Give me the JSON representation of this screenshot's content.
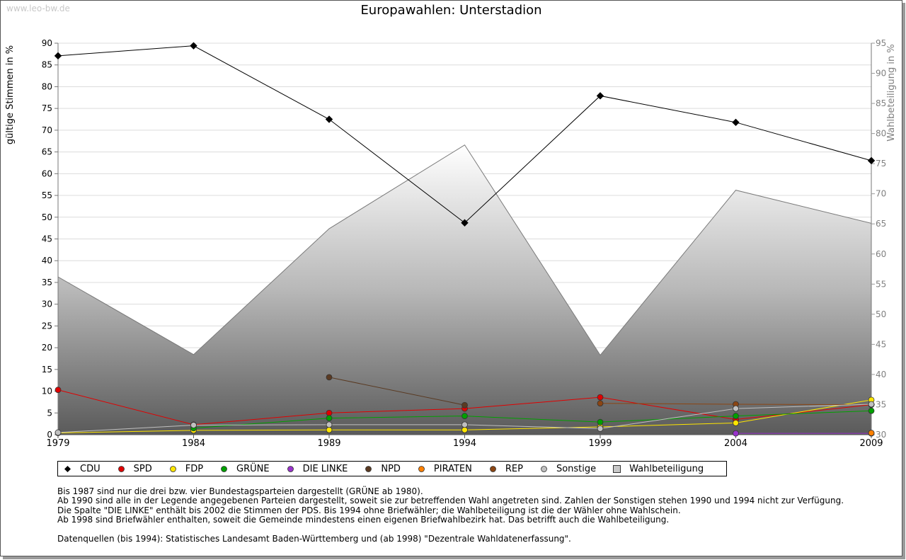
{
  "watermark": "www.leo-bw.de",
  "chart_data": {
    "type": "line",
    "title": "Europawahlen: Unterstadion",
    "ylabel": "gültige Stimmen in %",
    "y2label": "Wahlbeteiligung in %",
    "x": [
      "1979",
      "1984",
      "1989",
      "1994",
      "1999",
      "2004",
      "2009"
    ],
    "ylim": [
      0,
      90
    ],
    "yticks": [
      0,
      5,
      10,
      15,
      20,
      25,
      30,
      35,
      40,
      45,
      50,
      55,
      60,
      65,
      70,
      75,
      80,
      85,
      90
    ],
    "y2lim": [
      30,
      95
    ],
    "y2ticks": [
      30,
      35,
      40,
      45,
      50,
      55,
      60,
      65,
      70,
      75,
      80,
      85,
      90,
      95
    ],
    "grid": true,
    "legend_position": "bottom",
    "series": [
      {
        "name": "CDU",
        "color": "#000000",
        "values": [
          87.1,
          89.4,
          72.5,
          48.7,
          77.9,
          71.8,
          63.0
        ]
      },
      {
        "name": "SPD",
        "color": "#e00000",
        "values": [
          10.3,
          2.3,
          5.0,
          6.0,
          8.6,
          3.5,
          6.9
        ]
      },
      {
        "name": "FDP",
        "color": "#ffe600",
        "values": [
          0.4,
          1.0,
          1.1,
          1.1,
          1.8,
          2.7,
          8.0
        ]
      },
      {
        "name": "GRÜNE",
        "color": "#00a000",
        "values": [
          null,
          1.5,
          3.8,
          4.3,
          2.9,
          4.3,
          5.5
        ]
      },
      {
        "name": "DIE LINKE",
        "color": "#9933cc",
        "values": [
          null,
          null,
          null,
          null,
          null,
          0.3,
          0.3
        ]
      },
      {
        "name": "NPD",
        "color": "#5a3a22",
        "values": [
          null,
          null,
          13.2,
          6.8,
          null,
          null,
          null
        ]
      },
      {
        "name": "PIRATEN",
        "color": "#ff8000",
        "values": [
          null,
          null,
          null,
          null,
          null,
          null,
          0.4
        ]
      },
      {
        "name": "REP",
        "color": "#8b4513",
        "values": [
          null,
          null,
          null,
          null,
          7.2,
          7.0,
          6.9
        ]
      },
      {
        "name": "Sonstige",
        "color": "#c0c0c0",
        "values": [
          0.5,
          2.2,
          2.3,
          2.3,
          1.4,
          6.0,
          7.0
        ]
      },
      {
        "name": "Wahlbeteiligung",
        "color": "#808080",
        "axis": "right",
        "type": "area",
        "values": [
          56.2,
          43.3,
          64.2,
          78.1,
          43.2,
          70.6,
          65.1
        ]
      }
    ]
  },
  "notes": [
    "Bis 1987 sind nur die drei bzw. vier Bundestagsparteien dargestellt (GRÜNE ab 1980).",
    "Ab 1990 sind alle in der Legende angegebenen Parteien dargestellt, soweit sie zur betreffenden Wahl angetreten sind. Zahlen der Sonstigen stehen 1990 und 1994 nicht zur Verfügung.",
    "Die Spalte \"DIE LINKE\" enthält bis 2002 die Stimmen der PDS. Bis 1994 ohne Briefwähler; die Wahlbeteiligung ist die der Wähler ohne Wahlschein.",
    "Ab 1998 sind Briefwähler enthalten, soweit die Gemeinde mindestens einen eigenen Briefwahlbezirk hat. Das betrifft auch die Wahlbeteiligung."
  ],
  "source": "Datenquellen (bis 1994): Statistisches Landesamt Baden-Württemberg und (ab 1998) \"Dezentrale Wahldatenerfassung\"."
}
